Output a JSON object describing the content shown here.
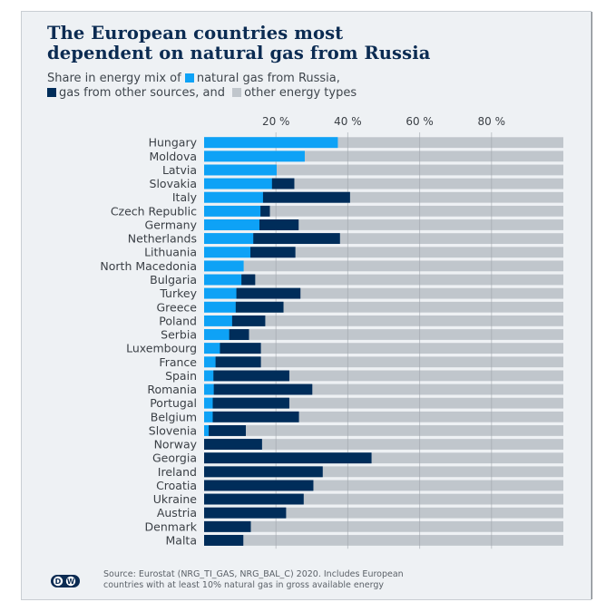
{
  "header": {
    "title_line1": "The European countries most",
    "title_line2": "dependent on natural gas from Russia",
    "subtitle_prefix": "Share in energy mix of",
    "legend_russia": "natural gas from Russia,",
    "legend_other_gas": "gas from other sources, and",
    "legend_other_energy": "other energy types"
  },
  "footer": {
    "logo_text": "DW",
    "source_line1": "Source: Eurostat (NRG_TI_GAS,  NRG_BAL_C) 2020. Includes European",
    "source_line2": "countries with at least 10% natural gas in gross available energy"
  },
  "colors": {
    "russia": "#0ea2f6",
    "other_gas": "#002d5a",
    "other_energy": "#c0c6cc",
    "title": "#0b2b52"
  },
  "chart_data": {
    "type": "bar",
    "orientation": "horizontal",
    "stacked": true,
    "title": "The European countries most dependent on natural gas from Russia",
    "subtitle": "Share in energy mix of natural gas from Russia, gas from other sources, and other energy types",
    "xlabel": "",
    "ylabel": "",
    "xlim": [
      0,
      100
    ],
    "xticks": [
      20,
      40,
      60,
      80
    ],
    "xtick_labels": [
      "20 %",
      "40 %",
      "60 %",
      "80 %"
    ],
    "grid": true,
    "legend_position": "subtitle-inline",
    "categories": [
      "Hungary",
      "Moldova",
      "Latvia",
      "Slovakia",
      "Italy",
      "Czech Republic",
      "Germany",
      "Netherlands",
      "Lithuania",
      "North Macedonia",
      "Bulgaria",
      "Turkey",
      "Greece",
      "Poland",
      "Serbia",
      "Luxembourg",
      "France",
      "Spain",
      "Romania",
      "Portugal",
      "Belgium",
      "Slovenia",
      "Norway",
      "Georgia",
      "Ireland",
      "Croatia",
      "Ukraine",
      "Austria",
      "Denmark",
      "Malta"
    ],
    "series": [
      {
        "name": "natural gas from Russia",
        "values": [
          37.2,
          28.0,
          20.2,
          18.9,
          16.4,
          15.7,
          15.4,
          13.7,
          12.9,
          11.0,
          10.4,
          9.0,
          8.8,
          7.8,
          7.0,
          4.4,
          3.2,
          2.6,
          2.7,
          2.4,
          2.4,
          1.3,
          0,
          0,
          0,
          0,
          0,
          0,
          0,
          0
        ]
      },
      {
        "name": "gas from other sources",
        "values": [
          0,
          0,
          0,
          6.2,
          24.2,
          2.6,
          10.9,
          24.1,
          12.5,
          0,
          3.8,
          17.8,
          13.3,
          9.2,
          5.5,
          11.4,
          12.6,
          21.1,
          27.4,
          21.3,
          24.0,
          10.3,
          16.1,
          46.6,
          33.0,
          30.4,
          27.7,
          22.8,
          13.0,
          10.9
        ]
      },
      {
        "name": "other energy types",
        "values": [
          62.8,
          72.0,
          79.8,
          74.9,
          59.4,
          81.7,
          73.7,
          62.2,
          74.6,
          89.0,
          85.8,
          73.2,
          77.9,
          83.0,
          87.5,
          84.2,
          84.2,
          76.3,
          69.9,
          76.3,
          73.6,
          88.4,
          83.9,
          53.4,
          67.0,
          69.6,
          72.3,
          77.2,
          87.0,
          89.1
        ]
      }
    ],
    "source": "Eurostat (NRG_TI_GAS, NRG_BAL_C) 2020"
  }
}
